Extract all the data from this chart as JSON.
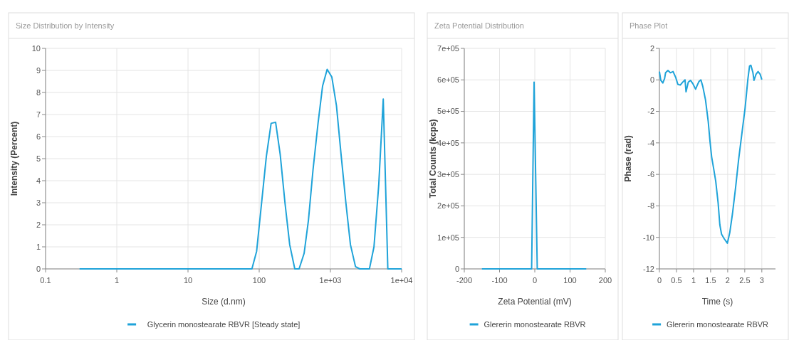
{
  "chart_data": [
    {
      "type": "line",
      "title": "Size Distribution by Intensity",
      "xlabel": "Size (d.nm)",
      "ylabel": "Intensity (Percent)",
      "log": "x",
      "xlim": [
        0.1,
        10000
      ],
      "xticks": [
        0.1,
        1,
        10,
        100,
        {
          "value": 1000,
          "label": "1e+03"
        },
        {
          "value": 10000,
          "label": "1e+04"
        }
      ],
      "ylim": [
        0,
        10
      ],
      "yticks": [
        0,
        1,
        2,
        3,
        4,
        5,
        6,
        7,
        8,
        9,
        10
      ],
      "grid": true,
      "legend": "bottom",
      "series": [
        {
          "name": "Glycerin monostearate RBVR [Steady state]",
          "color": "#1fa3d9",
          "x": [
            0.3,
            79,
            92,
            126,
            147,
            170,
            197,
            230,
            268,
            316,
            363,
            427,
            491,
            570,
            670,
            777,
            900,
            1047,
            1216,
            1410,
            1648,
            1910,
            2250,
            2580,
            3530,
            4090,
            4770,
            5520,
            6400,
            10000
          ],
          "values": [
            0,
            0,
            0.8,
            5.1,
            6.6,
            6.65,
            5.2,
            3,
            1.1,
            0,
            0,
            0.7,
            2.2,
            4.5,
            6.6,
            8.3,
            9.05,
            8.7,
            7.4,
            5.2,
            3,
            1.1,
            0.1,
            0,
            0,
            1,
            3.8,
            7.7,
            0,
            0
          ]
        }
      ]
    },
    {
      "type": "line",
      "title": "Zeta Potential Distribution",
      "xlabel": "Zeta Potential (mV)",
      "ylabel": "Total Counts (kcps)",
      "xlim": [
        -200,
        200
      ],
      "xticks": [
        -200,
        -100,
        0,
        100,
        200
      ],
      "ylim": [
        0,
        700000
      ],
      "yticks": [
        0,
        {
          "value": 100000,
          "label": "1e+05"
        },
        {
          "value": 200000,
          "label": "2e+05"
        },
        {
          "value": 300000,
          "label": "3e+05"
        },
        {
          "value": 400000,
          "label": "4e+05"
        },
        {
          "value": 500000,
          "label": "5e+05"
        },
        {
          "value": 600000,
          "label": "6e+05"
        },
        {
          "value": 700000,
          "label": "7e+05"
        }
      ],
      "grid": true,
      "legend": "bottom",
      "series": [
        {
          "name": "Glererin monostearate RBVR",
          "color": "#1fa3d9",
          "x": [
            -150,
            -9,
            -2,
            7,
            146
          ],
          "values": [
            0,
            0,
            593000,
            0,
            0
          ]
        }
      ]
    },
    {
      "type": "line",
      "title": "Phase Plot",
      "xlabel": "Time (s)",
      "ylabel": "Phase (rad)",
      "xlim": [
        0,
        3.4
      ],
      "xticks": [
        0,
        0.5,
        1,
        1.5,
        2,
        2.5,
        3
      ],
      "ylim": [
        -12,
        2
      ],
      "yticks": [
        -12,
        -10,
        -8,
        -6,
        -4,
        -2,
        0,
        2
      ],
      "grid": true,
      "legend": "bottom",
      "series": [
        {
          "name": "Glererin monostearate RBVR",
          "color": "#1fa3d9",
          "x": [
            0,
            0.04,
            0.1,
            0.15,
            0.18,
            0.25,
            0.32,
            0.4,
            0.48,
            0.54,
            0.61,
            0.68,
            0.75,
            0.78,
            0.845,
            0.91,
            0.98,
            1.06,
            1.11,
            1.16,
            1.215,
            1.27,
            1.35,
            1.43,
            1.48,
            1.53,
            1.585,
            1.65,
            1.72,
            1.77,
            1.82,
            1.9,
            1.99,
            2.06,
            2.14,
            2.23,
            2.32,
            2.42,
            2.51,
            2.59,
            2.64,
            2.68,
            2.74,
            2.77,
            2.83,
            2.89,
            2.95,
            3.0
          ],
          "values": [
            0.53,
            -0.03,
            -0.2,
            0.07,
            0.45,
            0.6,
            0.45,
            0.53,
            0.14,
            -0.28,
            -0.33,
            -0.15,
            0,
            -0.76,
            -0.15,
            -0.03,
            -0.24,
            -0.59,
            -0.33,
            -0.1,
            0,
            -0.41,
            -1.27,
            -2.65,
            -3.86,
            -4.89,
            -5.58,
            -6.44,
            -7.82,
            -9.2,
            -9.8,
            -10.09,
            -10.37,
            -9.71,
            -8.5,
            -6.87,
            -5.06,
            -3.34,
            -1.79,
            0.02,
            0.88,
            0.93,
            0.45,
            -0.03,
            0.36,
            0.53,
            0.36,
            0.02
          ]
        }
      ]
    }
  ]
}
